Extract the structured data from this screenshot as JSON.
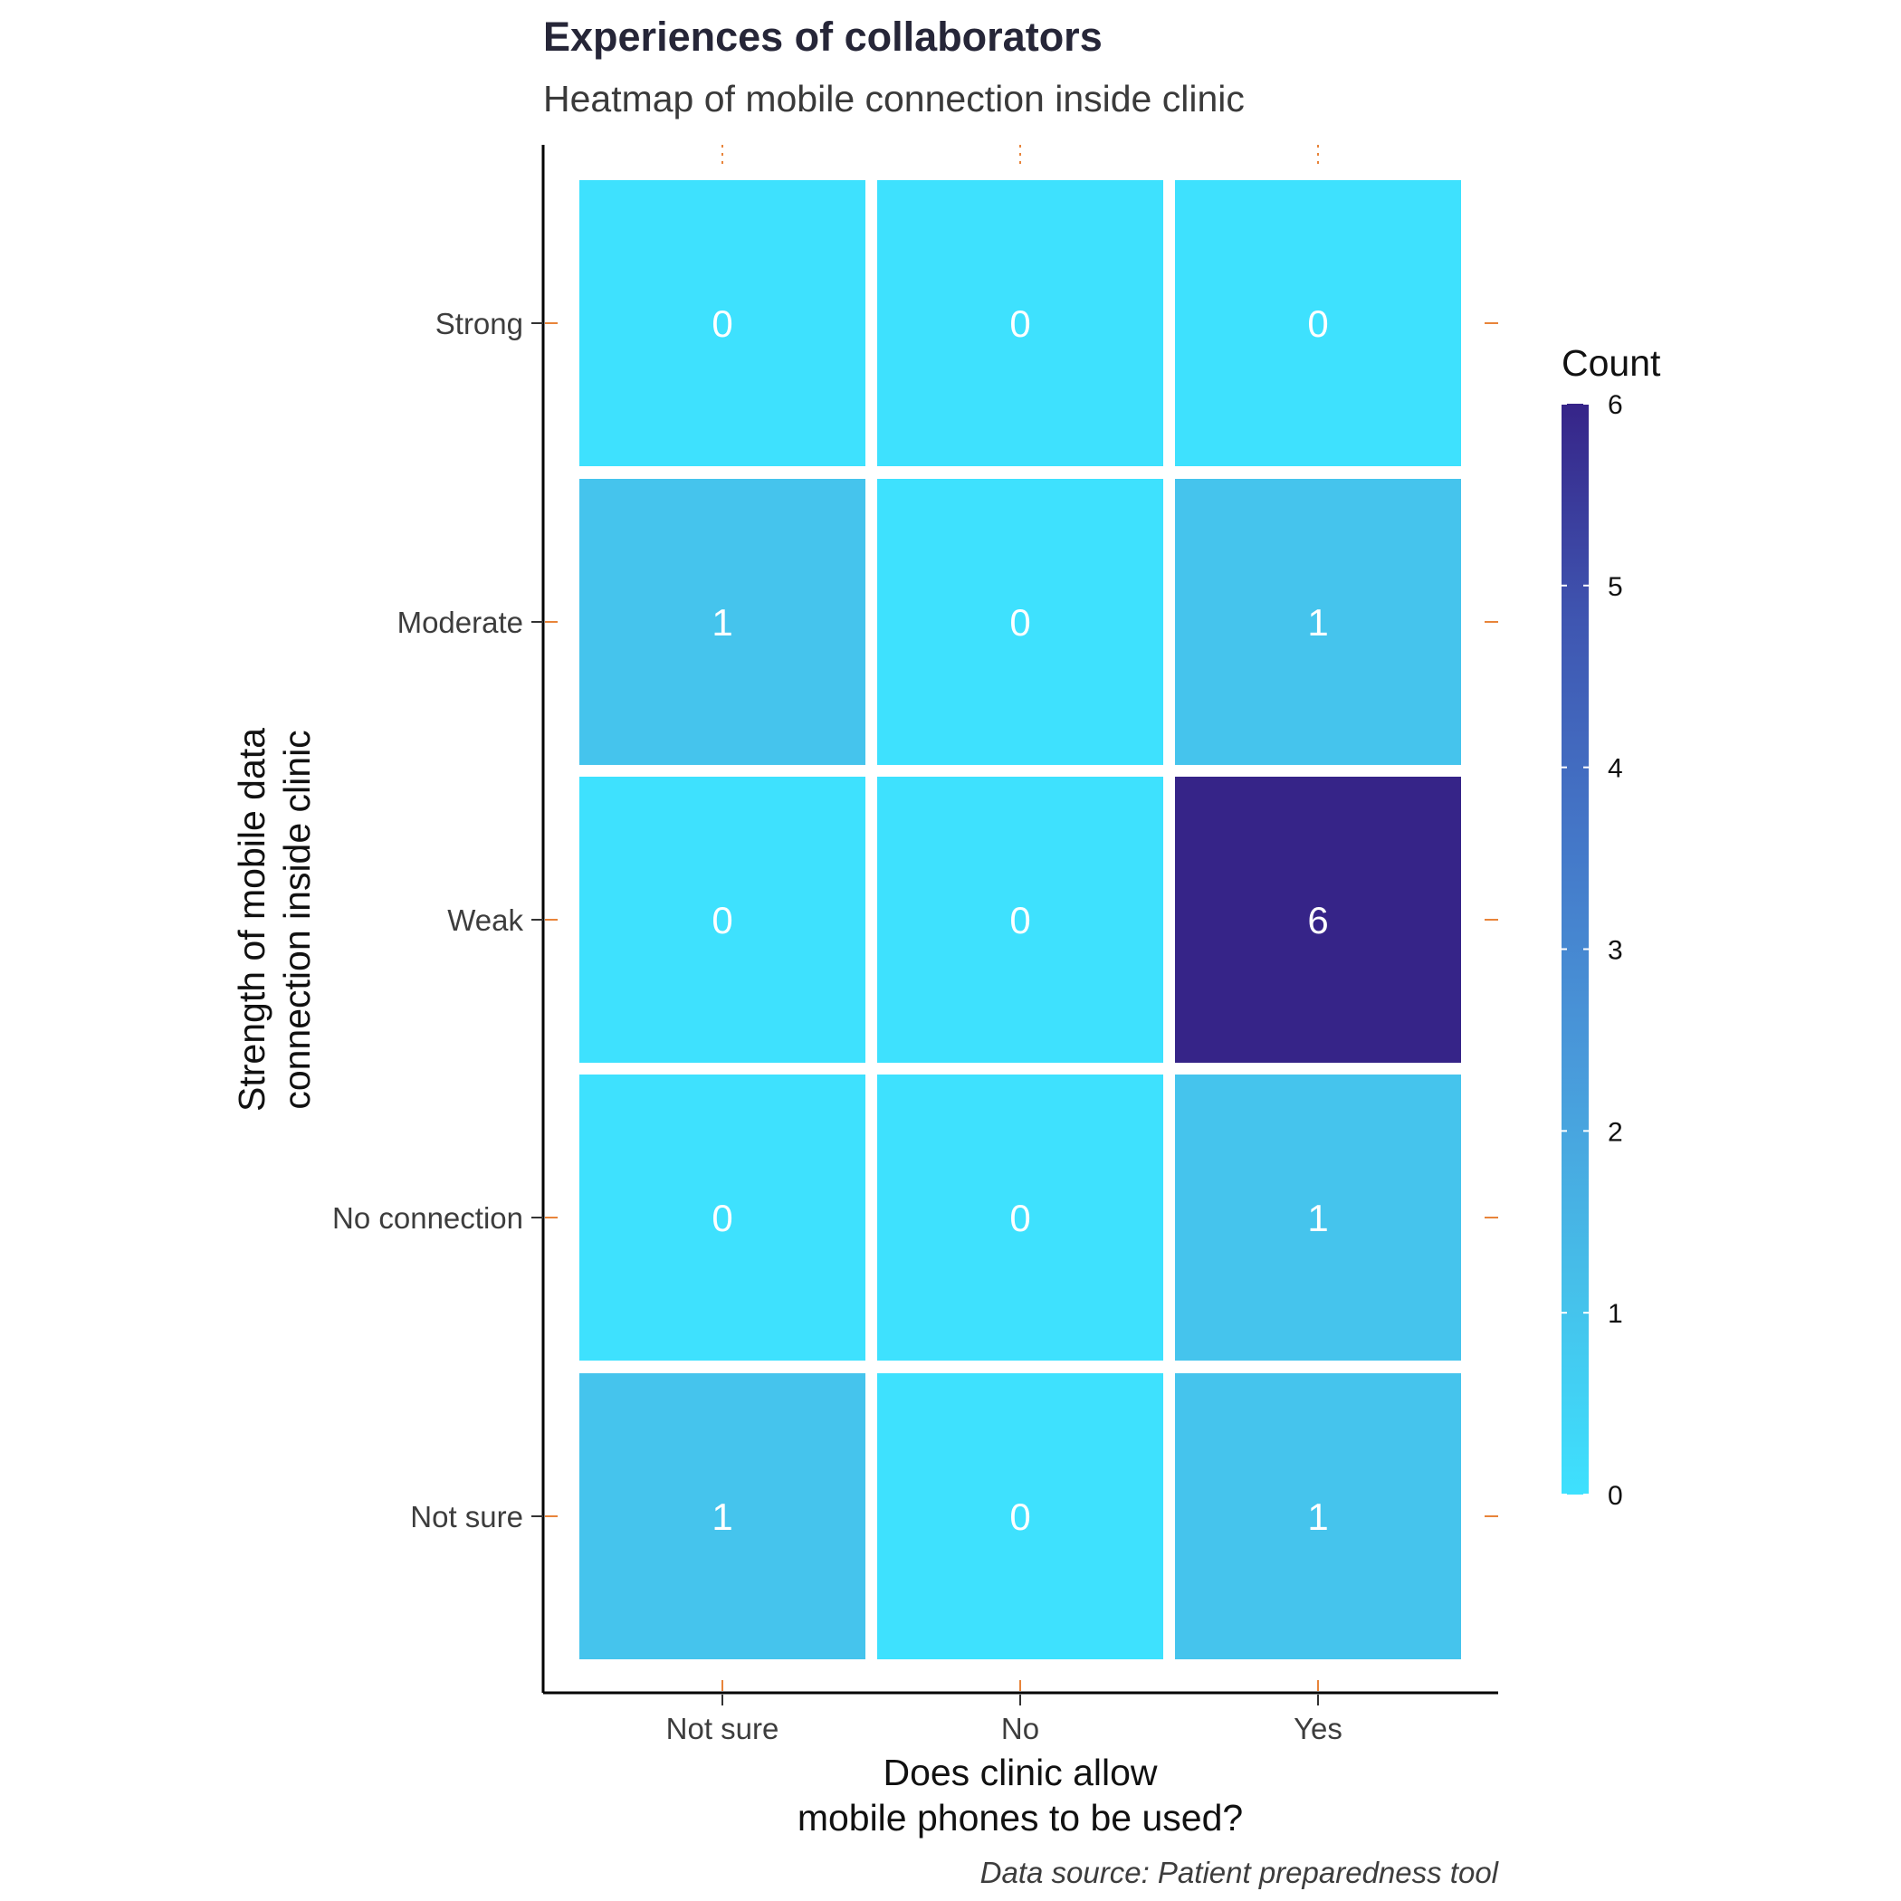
{
  "chart_data": {
    "type": "heatmap",
    "title": "Experiences of collaborators",
    "subtitle": "Heatmap of mobile connection inside clinic",
    "xlabel": "Does clinic allow\nmobile phones to be used?",
    "ylabel": "Strength of mobile data\nconnection inside clinic",
    "x_categories": [
      "Not sure",
      "No",
      "Yes"
    ],
    "y_categories": [
      "Strong",
      "Moderate",
      "Weak",
      "No connection",
      "Not sure"
    ],
    "values": [
      [
        0,
        0,
        0
      ],
      [
        1,
        0,
        1
      ],
      [
        0,
        0,
        6
      ],
      [
        0,
        0,
        1
      ],
      [
        1,
        0,
        1
      ]
    ],
    "legend": {
      "title": "Count",
      "ticks": [
        0,
        1,
        2,
        3,
        4,
        5,
        6
      ],
      "range": [
        0,
        6
      ],
      "colors": [
        "#3ee1fe",
        "#46bee9",
        "#4999da",
        "#4477c8",
        "#3f56b1",
        "#362488"
      ],
      "placement": "right"
    },
    "caption": "Data source: Patient preparedness tool",
    "grid": false
  }
}
